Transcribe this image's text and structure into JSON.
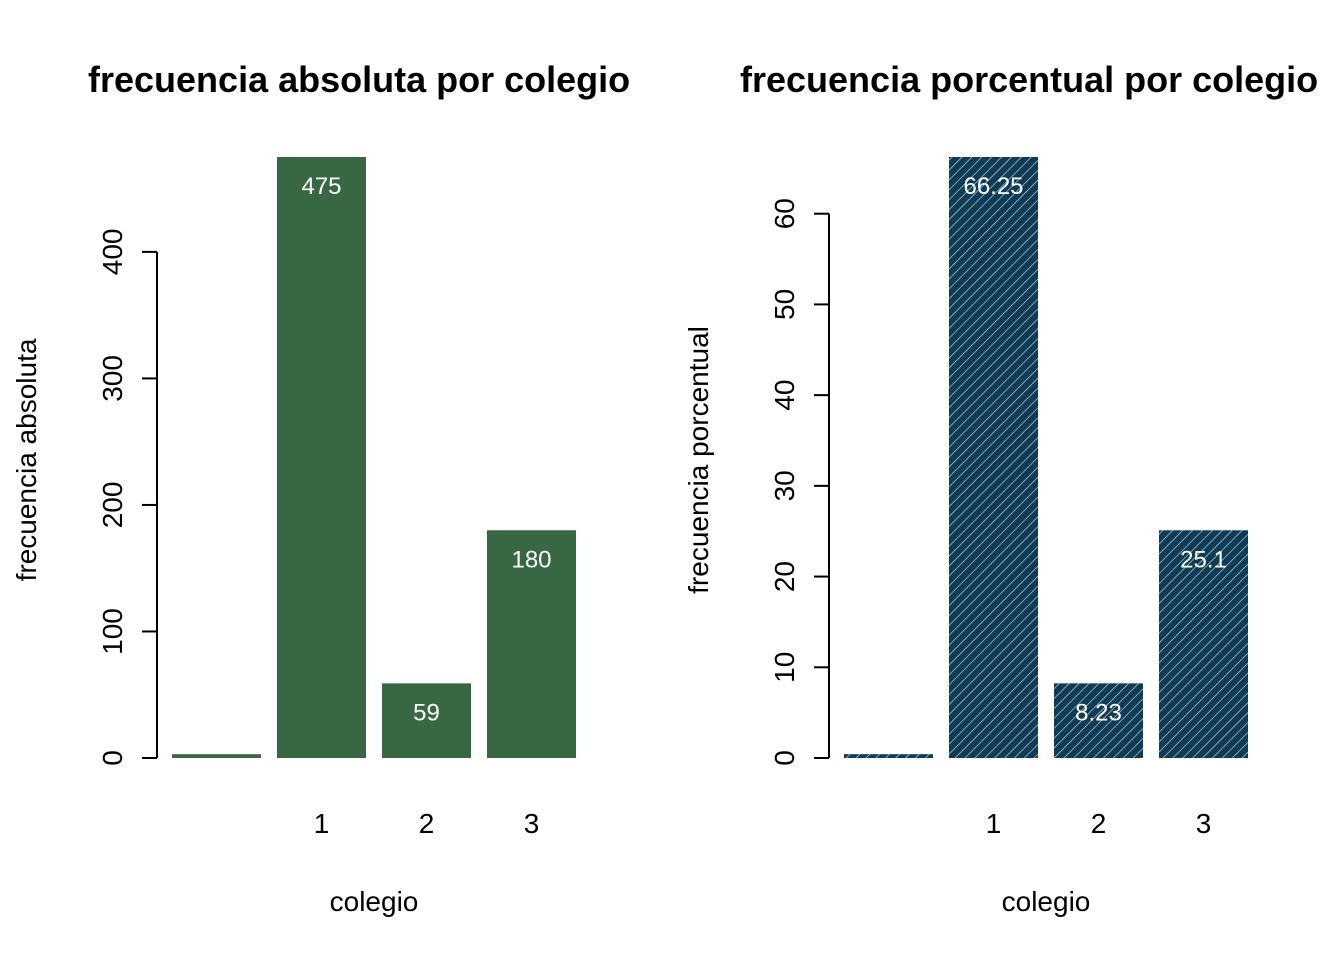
{
  "chart_data": [
    {
      "type": "bar",
      "title": "frecuencia absoluta por colegio",
      "xlabel": "colegio",
      "ylabel": "frecuencia absoluta",
      "categories": [
        "",
        "1",
        "2",
        "3"
      ],
      "values": [
        3,
        475,
        59,
        180
      ],
      "data_labels": [
        "",
        "475",
        "59",
        "180"
      ],
      "yticks": [
        0,
        100,
        200,
        300,
        400
      ],
      "ytick_labels": [
        "0",
        "100",
        "200",
        "300",
        "400"
      ],
      "ylim": [
        0,
        475
      ],
      "color": "#376843",
      "hatched": false
    },
    {
      "type": "bar",
      "title": "frecuencia porcentual por colegio",
      "xlabel": "colegio",
      "ylabel": "frecuencia porcentual",
      "categories": [
        "",
        "1",
        "2",
        "3"
      ],
      "values": [
        0.42,
        66.25,
        8.23,
        25.1
      ],
      "data_labels": [
        "",
        "66.25",
        "8.23",
        "25.1"
      ],
      "yticks": [
        0,
        10,
        20,
        30,
        40,
        50,
        60
      ],
      "ytick_labels": [
        "0",
        "10",
        "20",
        "30",
        "40",
        "50",
        "60"
      ],
      "ylim": [
        0,
        66.25
      ],
      "color": "#0e3b55",
      "hatched": true
    }
  ]
}
